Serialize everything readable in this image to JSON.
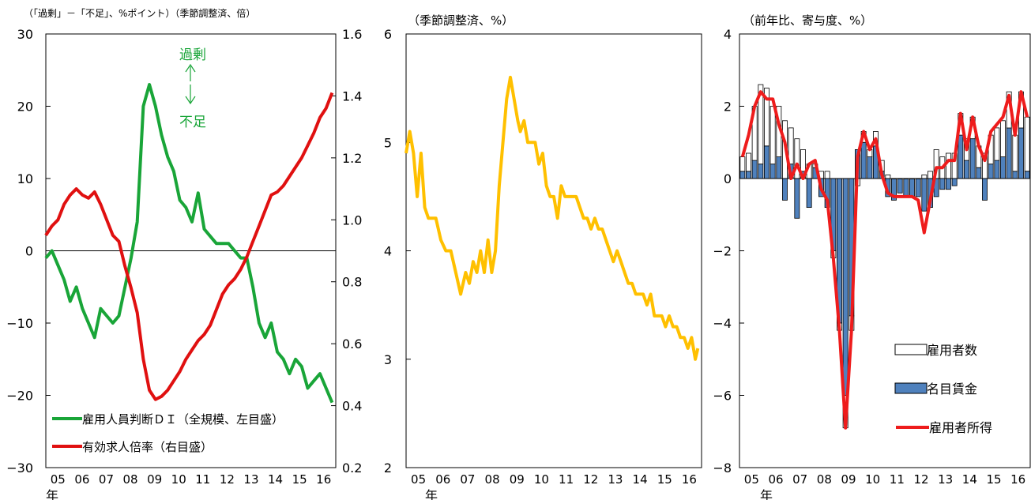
{
  "chart_data": [
    {
      "type": "line",
      "title": "（「過剰」－「不足」、%ポイント）（季節調整済、倍）",
      "left_axis": {
        "ylim": [
          -30,
          30
        ],
        "ticks": [
          30,
          20,
          10,
          0,
          -10,
          -20,
          -30
        ],
        "tick_labels": [
          "30",
          "20",
          "10",
          "0",
          "−10",
          "−20",
          "−30"
        ]
      },
      "right_axis": {
        "ylim": [
          0.2,
          1.6
        ],
        "ticks": [
          1.6,
          1.4,
          1.2,
          1.0,
          0.8,
          0.6,
          0.4,
          0.2
        ],
        "tick_labels": [
          "1.6",
          "1.4",
          "1.2",
          "1.0",
          "0.8",
          "0.6",
          "0.4",
          "0.2"
        ]
      },
      "x_tick_labels": [
        "05",
        "06",
        "07",
        "08",
        "09",
        "10",
        "11",
        "12",
        "13",
        "14",
        "15",
        "16"
      ],
      "x_unit": "年",
      "annotation": {
        "top": "過剰",
        "bottom": "不足"
      },
      "series": [
        {
          "name": "雇用人員判断ＤＩ（全規模、左目盛）",
          "axis": "left",
          "color": "#19a538",
          "x": [
            2005.0,
            2005.25,
            2005.5,
            2005.75,
            2006.0,
            2006.25,
            2006.5,
            2006.75,
            2007.0,
            2007.25,
            2007.5,
            2007.75,
            2008.0,
            2008.25,
            2008.5,
            2008.75,
            2009.0,
            2009.25,
            2009.5,
            2009.75,
            2010.0,
            2010.25,
            2010.5,
            2010.75,
            2011.0,
            2011.25,
            2011.5,
            2011.75,
            2012.0,
            2012.25,
            2012.5,
            2012.75,
            2013.0,
            2013.25,
            2013.5,
            2013.75,
            2014.0,
            2014.25,
            2014.5,
            2014.75,
            2015.0,
            2015.25,
            2015.5,
            2015.75,
            2016.0,
            2016.25,
            2016.5,
            2016.75
          ],
          "y": [
            -1,
            0,
            -2,
            -4,
            -7,
            -5,
            -8,
            -10,
            -12,
            -8,
            -9,
            -10,
            -9,
            -5,
            -1,
            4,
            20,
            23,
            20,
            16,
            13,
            11,
            7,
            6,
            4,
            8,
            3,
            2,
            1,
            1,
            1,
            0,
            -1,
            -1,
            -5,
            -10,
            -12,
            -10,
            -14,
            -15,
            -17,
            -15,
            -16,
            -19,
            -18,
            -17,
            -19,
            -21
          ]
        },
        {
          "name": "有効求人倍率（右目盛）",
          "axis": "right",
          "color": "#e01010",
          "x": [
            2005.0,
            2005.25,
            2005.5,
            2005.75,
            2006.0,
            2006.25,
            2006.5,
            2006.75,
            2007.0,
            2007.25,
            2007.5,
            2007.75,
            2008.0,
            2008.25,
            2008.5,
            2008.75,
            2009.0,
            2009.25,
            2009.5,
            2009.75,
            2010.0,
            2010.25,
            2010.5,
            2010.75,
            2011.0,
            2011.25,
            2011.5,
            2011.75,
            2012.0,
            2012.25,
            2012.5,
            2012.75,
            2013.0,
            2013.25,
            2013.5,
            2013.75,
            2014.0,
            2014.25,
            2014.5,
            2014.75,
            2015.0,
            2015.25,
            2015.5,
            2015.75,
            2016.0,
            2016.25,
            2016.5,
            2016.75
          ],
          "y": [
            0.95,
            0.98,
            1.0,
            1.05,
            1.08,
            1.1,
            1.08,
            1.07,
            1.09,
            1.05,
            1.0,
            0.95,
            0.93,
            0.85,
            0.78,
            0.7,
            0.55,
            0.45,
            0.42,
            0.43,
            0.45,
            0.48,
            0.51,
            0.55,
            0.58,
            0.61,
            0.63,
            0.66,
            0.71,
            0.76,
            0.79,
            0.81,
            0.84,
            0.88,
            0.93,
            0.98,
            1.03,
            1.08,
            1.09,
            1.11,
            1.14,
            1.17,
            1.2,
            1.24,
            1.28,
            1.33,
            1.36,
            1.41
          ]
        }
      ]
    },
    {
      "type": "line",
      "title": "（季節調整済、%）",
      "ylim": [
        2,
        6
      ],
      "ticks": [
        6,
        5,
        4,
        3,
        2
      ],
      "tick_labels": [
        "6",
        "5",
        "4",
        "3",
        "2"
      ],
      "x_tick_labels": [
        "05",
        "06",
        "07",
        "08",
        "09",
        "10",
        "11",
        "12",
        "13",
        "14",
        "15",
        "16"
      ],
      "x_unit": "年",
      "series": [
        {
          "color": "#ffc000",
          "x": [
            2005.0,
            2005.15,
            2005.3,
            2005.45,
            2005.6,
            2005.75,
            2005.9,
            2006.05,
            2006.2,
            2006.4,
            2006.6,
            2006.8,
            2007.0,
            2007.2,
            2007.4,
            2007.55,
            2007.7,
            2007.85,
            2008.0,
            2008.15,
            2008.3,
            2008.45,
            2008.6,
            2008.75,
            2008.9,
            2009.05,
            2009.2,
            2009.35,
            2009.5,
            2009.6,
            2009.75,
            2009.9,
            2010.05,
            2010.2,
            2010.35,
            2010.5,
            2010.65,
            2010.8,
            2010.95,
            2011.1,
            2011.25,
            2011.4,
            2011.55,
            2011.7,
            2011.85,
            2012.0,
            2012.15,
            2012.3,
            2012.45,
            2012.6,
            2012.75,
            2012.9,
            2013.05,
            2013.2,
            2013.35,
            2013.5,
            2013.65,
            2013.8,
            2013.95,
            2014.1,
            2014.25,
            2014.4,
            2014.55,
            2014.7,
            2014.85,
            2015.0,
            2015.15,
            2015.3,
            2015.45,
            2015.6,
            2015.75,
            2015.9,
            2016.05,
            2016.2,
            2016.35,
            2016.5,
            2016.65,
            2016.75
          ],
          "y": [
            4.9,
            5.1,
            4.9,
            4.5,
            4.9,
            4.4,
            4.3,
            4.3,
            4.3,
            4.1,
            4.0,
            4.0,
            3.8,
            3.6,
            3.8,
            3.7,
            3.9,
            3.8,
            4.0,
            3.8,
            4.1,
            3.8,
            4.0,
            4.6,
            5.0,
            5.4,
            5.6,
            5.4,
            5.2,
            5.1,
            5.2,
            5.0,
            5.0,
            5.0,
            4.8,
            4.9,
            4.6,
            4.5,
            4.5,
            4.3,
            4.6,
            4.5,
            4.5,
            4.5,
            4.5,
            4.4,
            4.3,
            4.3,
            4.2,
            4.3,
            4.2,
            4.2,
            4.1,
            4.0,
            3.9,
            4.0,
            3.9,
            3.8,
            3.7,
            3.7,
            3.6,
            3.6,
            3.6,
            3.5,
            3.6,
            3.4,
            3.4,
            3.4,
            3.3,
            3.4,
            3.3,
            3.3,
            3.2,
            3.2,
            3.1,
            3.2,
            3.0,
            3.1
          ]
        }
      ]
    },
    {
      "type": "bar",
      "title": "（前年比、寄与度、%）",
      "ylim": [
        -8,
        4
      ],
      "ticks": [
        4,
        2,
        0,
        -2,
        -4,
        -6,
        -8
      ],
      "tick_labels": [
        "4",
        "2",
        "0",
        "−2",
        "−4",
        "−6",
        "−8"
      ],
      "x_tick_labels": [
        "05",
        "06",
        "07",
        "08",
        "09",
        "10",
        "11",
        "12",
        "13",
        "14",
        "15",
        "16"
      ],
      "x_unit": "年",
      "categories": [
        "05Q1",
        "05Q2",
        "05Q3",
        "05Q4",
        "06Q1",
        "06Q2",
        "06Q3",
        "06Q4",
        "07Q1",
        "07Q2",
        "07Q3",
        "07Q4",
        "08Q1",
        "08Q2",
        "08Q3",
        "08Q4",
        "09Q1",
        "09Q2",
        "09Q3",
        "09Q4",
        "10Q1",
        "10Q2",
        "10Q3",
        "10Q4",
        "11Q1",
        "11Q2",
        "11Q3",
        "11Q4",
        "12Q1",
        "12Q2",
        "12Q3",
        "12Q4",
        "13Q1",
        "13Q2",
        "13Q3",
        "13Q4",
        "14Q1",
        "14Q2",
        "14Q3",
        "14Q4",
        "15Q1",
        "15Q2",
        "15Q3",
        "15Q4",
        "16Q1",
        "16Q2",
        "16Q3",
        "16Q4"
      ],
      "series": [
        {
          "name": "雇用者数",
          "kind": "stacked-bar",
          "color": "#ffffff",
          "values": [
            0.4,
            0.5,
            1.5,
            2.2,
            1.6,
            1.6,
            1.4,
            1.6,
            1.0,
            1.1,
            0.6,
            0.4,
            0.1,
            0.2,
            0.2,
            -0.2,
            -0.2,
            -0.9,
            -0.4,
            -0.2,
            0.3,
            0.2,
            0.4,
            0.3,
            0.1,
            0.0,
            0.0,
            0.0,
            0.0,
            0.0,
            0.1,
            0.2,
            0.8,
            0.6,
            0.7,
            0.7,
            0.6,
            0.6,
            0.6,
            0.6,
            0.7,
            0.8,
            0.9,
            1.0,
            1.0,
            1.0,
            1.0,
            1.5
          ]
        },
        {
          "name": "名目賃金",
          "kind": "stacked-bar",
          "color": "#4f81bd",
          "values": [
            0.2,
            0.2,
            0.5,
            0.4,
            0.9,
            0.4,
            0.6,
            -0.6,
            0.4,
            -1.1,
            0.2,
            -0.8,
            0.3,
            -0.5,
            -0.8,
            -2.0,
            -4.0,
            -6.0,
            -3.8,
            0.8,
            1.0,
            0.6,
            0.9,
            0.2,
            -0.5,
            -0.6,
            -0.4,
            -0.5,
            -0.5,
            -0.5,
            -0.9,
            -0.8,
            -0.5,
            -0.3,
            -0.3,
            -0.2,
            1.2,
            0.5,
            1.1,
            0.3,
            -0.6,
            0.4,
            0.5,
            0.6,
            1.4,
            0.2,
            1.4,
            0.2
          ]
        },
        {
          "name": "雇用者所得",
          "kind": "line",
          "color": "#ee1c1c",
          "values": [
            0.6,
            1.2,
            2.0,
            2.4,
            2.2,
            2.2,
            1.5,
            1.0,
            0.0,
            0.4,
            0.0,
            0.4,
            0.5,
            -0.3,
            -0.6,
            -2.2,
            -4.2,
            -6.9,
            -4.2,
            0.6,
            1.3,
            0.8,
            1.1,
            0.1,
            -0.4,
            -0.5,
            -0.5,
            -0.5,
            -0.5,
            -0.6,
            -1.5,
            -0.6,
            0.3,
            0.3,
            0.5,
            0.5,
            1.8,
            0.8,
            1.7,
            0.9,
            0.5,
            1.3,
            1.5,
            1.7,
            2.3,
            1.2,
            2.4,
            1.7
          ]
        }
      ]
    }
  ]
}
